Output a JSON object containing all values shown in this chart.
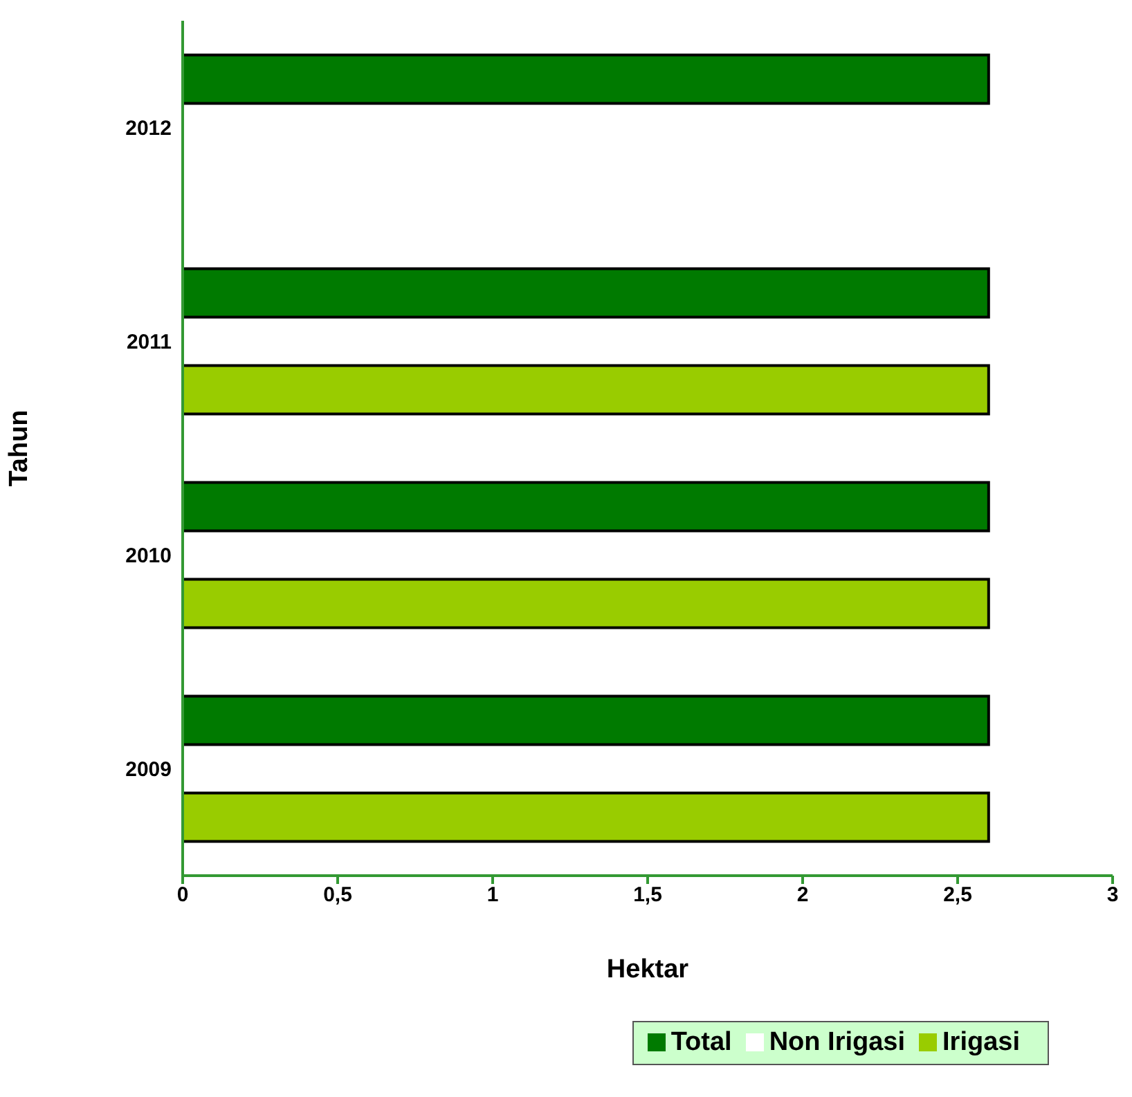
{
  "chart_data": {
    "type": "bar",
    "orientation": "horizontal",
    "xlabel": "Hektar",
    "ylabel": "Tahun",
    "categories": [
      "2012",
      "2011",
      "2010",
      "2009"
    ],
    "series": [
      {
        "name": "Total",
        "color": "#007a00",
        "values": [
          2.6,
          2.6,
          2.6,
          2.6
        ]
      },
      {
        "name": "Non Irigasi",
        "color": "#ffffff",
        "values": [
          null,
          null,
          null,
          null
        ]
      },
      {
        "name": "Irigasi",
        "color": "#99cc00",
        "values": [
          null,
          2.6,
          2.6,
          2.6
        ]
      }
    ],
    "xlim": [
      0,
      3
    ],
    "xticks": [
      0,
      {
        "value": 0.5,
        "label": "0,5"
      },
      1,
      {
        "value": 1.5,
        "label": "1,5"
      },
      2,
      {
        "value": 2.5,
        "label": "2,5"
      },
      3
    ],
    "grid": false,
    "legend": "bottom right"
  }
}
